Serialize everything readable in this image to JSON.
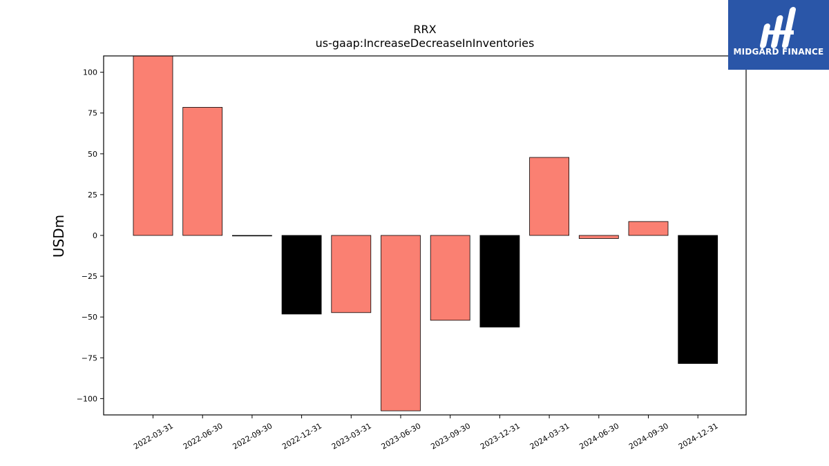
{
  "chart_data": {
    "type": "bar",
    "title": "RRX",
    "subtitle": "us-gaap:IncreaseDecreaseInInventories",
    "xlabel": "",
    "ylabel": "USDm",
    "ylim": [
      -110,
      110
    ],
    "yticks": [
      100,
      75,
      50,
      25,
      0,
      -25,
      -50,
      -75,
      -100
    ],
    "ytick_labels": [
      "100",
      "75",
      "50",
      "25",
      "0",
      "−25",
      "−50",
      "−75",
      "−100"
    ],
    "grid": false,
    "categories": [
      "2022-03-31",
      "2022-06-30",
      "2022-09-30",
      "2022-12-31",
      "2023-03-31",
      "2023-06-30",
      "2023-09-30",
      "2023-12-31",
      "2024-03-31",
      "2024-06-30",
      "2024-09-30",
      "2024-12-31"
    ],
    "values": [
      110,
      78.5,
      -0.3,
      -48.2,
      -47.3,
      -107.5,
      -52,
      -56.2,
      47.8,
      -1.9,
      8.5,
      -78.5
    ],
    "colors": [
      "#fa8072",
      "#fa8072",
      "#000000",
      "#000000",
      "#fa8072",
      "#fa8072",
      "#fa8072",
      "#000000",
      "#fa8072",
      "#fa8072",
      "#fa8072",
      "#000000"
    ]
  },
  "logo": {
    "text": "MIDGARD FINANCE",
    "background": "#2a56a8"
  }
}
